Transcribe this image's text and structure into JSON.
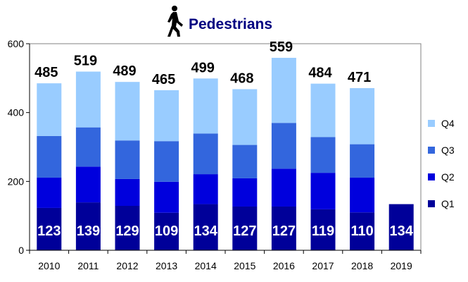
{
  "chart_data": {
    "type": "bar",
    "stacked": true,
    "title": "Pedestrians",
    "title_icon": "pedestrian-walking-icon",
    "categories": [
      "2010",
      "2011",
      "2012",
      "2013",
      "2014",
      "2015",
      "2016",
      "2017",
      "2018",
      "2019"
    ],
    "series": [
      {
        "name": "Q1",
        "color": "#000099",
        "values": [
          123,
          139,
          129,
          109,
          134,
          127,
          127,
          119,
          110,
          134
        ]
      },
      {
        "name": "Q2",
        "color": "#0000DD",
        "values": [
          88,
          104,
          78,
          90,
          87,
          82,
          110,
          106,
          101,
          null
        ]
      },
      {
        "name": "Q3",
        "color": "#3366DD",
        "values": [
          121,
          114,
          112,
          118,
          118,
          97,
          133,
          104,
          97,
          null
        ]
      },
      {
        "name": "Q4",
        "color": "#99CCFF",
        "values": [
          153,
          162,
          170,
          148,
          160,
          162,
          189,
          155,
          163,
          null
        ]
      }
    ],
    "totals": [
      485,
      519,
      489,
      465,
      499,
      468,
      559,
      484,
      471,
      null
    ],
    "ylim": [
      0,
      600
    ],
    "yticks": [
      0,
      200,
      400,
      600
    ],
    "xlabel": "",
    "ylabel": "",
    "grid": false,
    "legend_position": "right",
    "plot_background": "#ffffff",
    "legend_order": [
      "Q4",
      "Q3",
      "Q2",
      "Q1"
    ]
  }
}
